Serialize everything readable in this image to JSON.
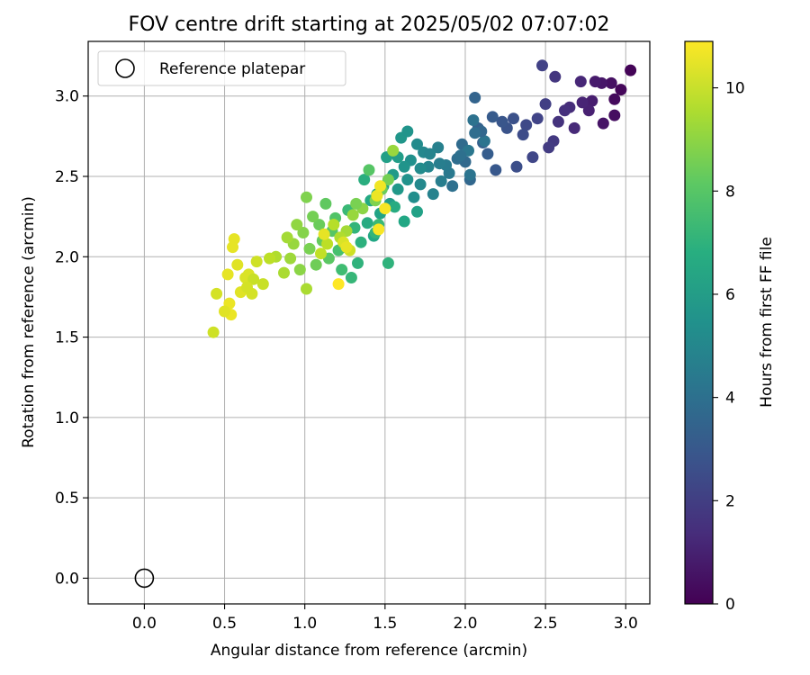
{
  "chart_data": {
    "type": "scatter",
    "title": "FOV centre drift starting at 2025/05/02 07:07:02",
    "xlabel": "Angular distance from reference (arcmin)",
    "ylabel": "Rotation from reference (arcmin)",
    "xlim": [
      -0.35,
      3.15
    ],
    "ylim": [
      -0.16,
      3.34
    ],
    "xticks": [
      0.0,
      0.5,
      1.0,
      1.5,
      2.0,
      2.5,
      3.0
    ],
    "xtick_labels": [
      "0.0",
      "0.5",
      "1.0",
      "1.5",
      "2.0",
      "2.5",
      "3.0"
    ],
    "yticks": [
      0.0,
      0.5,
      1.0,
      1.5,
      2.0,
      2.5,
      3.0
    ],
    "ytick_labels": [
      "0.0",
      "0.5",
      "1.0",
      "1.5",
      "2.0",
      "2.5",
      "3.0"
    ],
    "grid": true,
    "legend": {
      "position": "top-left",
      "entries": [
        "Reference platepar"
      ]
    },
    "reference_point": {
      "x": 0.0,
      "y": 0.0,
      "name": "Reference platepar"
    },
    "colorbar": {
      "label": "Hours from first FF file",
      "colormap": "viridis",
      "range": [
        0,
        10.9
      ],
      "ticks": [
        0,
        2,
        4,
        6,
        8,
        10
      ],
      "tick_labels": [
        "0",
        "2",
        "4",
        "6",
        "8",
        "10"
      ]
    },
    "points": [
      [
        3.03,
        3.16,
        0.1
      ],
      [
        2.97,
        3.04,
        0.2
      ],
      [
        2.93,
        2.98,
        0.3
      ],
      [
        2.93,
        2.88,
        0.4
      ],
      [
        2.91,
        3.08,
        0.5
      ],
      [
        2.86,
        2.83,
        0.6
      ],
      [
        2.85,
        3.08,
        0.7
      ],
      [
        2.81,
        3.09,
        0.8
      ],
      [
        2.79,
        2.97,
        0.9
      ],
      [
        2.77,
        2.91,
        1.0
      ],
      [
        2.73,
        2.96,
        1.1
      ],
      [
        2.72,
        3.09,
        1.2
      ],
      [
        2.68,
        2.8,
        1.3
      ],
      [
        2.65,
        2.93,
        1.4
      ],
      [
        2.62,
        2.91,
        1.5
      ],
      [
        2.58,
        2.84,
        1.6
      ],
      [
        2.56,
        3.12,
        1.7
      ],
      [
        2.55,
        2.72,
        1.8
      ],
      [
        2.52,
        2.68,
        1.9
      ],
      [
        2.5,
        2.95,
        2.0
      ],
      [
        2.48,
        3.19,
        2.1
      ],
      [
        2.45,
        2.86,
        2.2
      ],
      [
        2.42,
        2.62,
        2.3
      ],
      [
        2.38,
        2.82,
        2.4
      ],
      [
        2.36,
        2.76,
        2.5
      ],
      [
        2.32,
        2.56,
        2.6
      ],
      [
        2.3,
        2.86,
        2.7
      ],
      [
        2.26,
        2.8,
        2.8
      ],
      [
        2.23,
        2.84,
        2.9
      ],
      [
        2.19,
        2.54,
        3.0
      ],
      [
        2.17,
        2.87,
        3.1
      ],
      [
        2.14,
        2.64,
        3.2
      ],
      [
        2.11,
        2.71,
        3.3
      ],
      [
        2.08,
        2.8,
        3.4
      ],
      [
        2.06,
        2.99,
        3.5
      ],
      [
        2.03,
        2.48,
        3.6
      ],
      [
        2.0,
        2.59,
        3.7
      ],
      [
        1.98,
        2.7,
        3.8
      ],
      [
        1.95,
        2.61,
        3.9
      ],
      [
        1.92,
        2.44,
        4.0
      ],
      [
        2.05,
        2.85,
        4.1
      ],
      [
        2.12,
        2.72,
        4.2
      ],
      [
        2.02,
        2.66,
        4.3
      ],
      [
        1.9,
        2.52,
        4.4
      ],
      [
        1.88,
        2.57,
        4.5
      ],
      [
        1.85,
        2.47,
        4.6
      ],
      [
        1.83,
        2.68,
        4.7
      ],
      [
        1.8,
        2.39,
        4.8
      ],
      [
        1.77,
        2.56,
        4.9
      ],
      [
        1.74,
        2.65,
        5.0
      ],
      [
        1.72,
        2.45,
        5.1
      ],
      [
        1.7,
        2.7,
        5.2
      ],
      [
        1.68,
        2.37,
        5.3
      ],
      [
        1.66,
        2.6,
        5.4
      ],
      [
        1.64,
        2.48,
        5.5
      ],
      [
        1.62,
        2.56,
        5.6
      ],
      [
        1.6,
        2.74,
        5.7
      ],
      [
        1.58,
        2.42,
        5.8
      ],
      [
        1.55,
        2.51,
        5.9
      ],
      [
        1.53,
        2.33,
        6.0
      ],
      [
        1.51,
        2.62,
        6.1
      ],
      [
        1.49,
        2.44,
        6.2
      ],
      [
        1.47,
        2.27,
        6.3
      ],
      [
        1.45,
        2.39,
        6.4
      ],
      [
        1.43,
        2.13,
        6.5
      ],
      [
        1.41,
        2.35,
        6.6
      ],
      [
        1.39,
        2.21,
        6.7
      ],
      [
        1.37,
        2.48,
        6.8
      ],
      [
        1.35,
        2.09,
        6.9
      ],
      [
        1.33,
        1.96,
        7.0
      ],
      [
        1.31,
        2.18,
        7.1
      ],
      [
        1.29,
        1.87,
        7.2
      ],
      [
        1.27,
        2.29,
        7.3
      ],
      [
        1.25,
        2.06,
        7.4
      ],
      [
        1.23,
        1.92,
        7.5
      ],
      [
        1.52,
        1.96,
        7.0
      ],
      [
        1.64,
        2.78,
        5.6
      ],
      [
        1.72,
        2.55,
        5.2
      ],
      [
        1.78,
        2.64,
        4.9
      ],
      [
        1.84,
        2.58,
        4.6
      ],
      [
        1.97,
        2.63,
        4.0
      ],
      [
        2.1,
        2.78,
        3.6
      ],
      [
        2.06,
        2.77,
        3.9
      ],
      [
        2.03,
        2.51,
        4.2
      ],
      [
        1.58,
        2.62,
        6.0
      ],
      [
        1.44,
        2.15,
        7.1
      ],
      [
        1.62,
        2.22,
        6.5
      ],
      [
        1.7,
        2.28,
        6.2
      ],
      [
        1.56,
        2.31,
        6.7
      ],
      [
        1.46,
        2.2,
        7.3
      ],
      [
        1.21,
        2.04,
        7.7
      ],
      [
        1.19,
        2.24,
        7.9
      ],
      [
        1.17,
        2.16,
        8.0
      ],
      [
        1.15,
        1.99,
        8.1
      ],
      [
        1.13,
        2.33,
        8.2
      ],
      [
        1.11,
        2.1,
        8.3
      ],
      [
        1.09,
        2.2,
        8.4
      ],
      [
        1.07,
        1.95,
        8.5
      ],
      [
        1.05,
        2.25,
        8.6
      ],
      [
        1.03,
        2.05,
        8.7
      ],
      [
        1.01,
        2.37,
        8.8
      ],
      [
        0.99,
        2.15,
        8.9
      ],
      [
        0.97,
        1.92,
        9.0
      ],
      [
        0.95,
        2.2,
        9.1
      ],
      [
        0.93,
        2.08,
        9.2
      ],
      [
        0.91,
        1.99,
        9.3
      ],
      [
        0.89,
        2.12,
        9.4
      ],
      [
        0.87,
        1.9,
        9.5
      ],
      [
        1.01,
        1.8,
        9.5
      ],
      [
        1.4,
        2.54,
        8.0
      ],
      [
        1.48,
        2.42,
        8.4
      ],
      [
        1.52,
        2.48,
        8.6
      ],
      [
        1.44,
        2.35,
        8.8
      ],
      [
        1.36,
        2.3,
        9.0
      ],
      [
        1.3,
        2.26,
        9.2
      ],
      [
        1.26,
        2.16,
        9.4
      ],
      [
        1.22,
        2.12,
        9.6
      ],
      [
        1.18,
        2.2,
        9.7
      ],
      [
        1.14,
        2.08,
        9.8
      ],
      [
        1.1,
        2.02,
        9.9
      ],
      [
        1.28,
        2.04,
        10.1
      ],
      [
        1.24,
        2.09,
        10.3
      ],
      [
        1.26,
        2.06,
        10.5
      ],
      [
        1.45,
        2.38,
        10.6
      ],
      [
        1.47,
        2.44,
        10.7
      ],
      [
        1.5,
        2.3,
        10.8
      ],
      [
        1.21,
        1.83,
        10.9
      ],
      [
        1.12,
        2.14,
        10.5
      ],
      [
        1.46,
        2.17,
        10.8
      ],
      [
        1.55,
        2.66,
        9.2
      ],
      [
        0.82,
        2.0,
        9.6
      ],
      [
        0.78,
        1.99,
        9.8
      ],
      [
        0.74,
        1.83,
        10.0
      ],
      [
        0.7,
        1.97,
        10.1
      ],
      [
        0.67,
        1.77,
        10.2
      ],
      [
        0.65,
        1.89,
        10.3
      ],
      [
        0.63,
        1.87,
        10.3
      ],
      [
        0.6,
        1.78,
        10.4
      ],
      [
        0.58,
        1.95,
        10.4
      ],
      [
        0.56,
        2.11,
        10.5
      ],
      [
        0.55,
        2.06,
        10.5
      ],
      [
        0.54,
        1.64,
        10.6
      ],
      [
        0.53,
        1.71,
        10.6
      ],
      [
        0.52,
        1.89,
        10.5
      ],
      [
        0.5,
        1.66,
        10.4
      ],
      [
        0.45,
        1.77,
        10.2
      ],
      [
        0.43,
        1.53,
        10.1
      ],
      [
        0.68,
        1.86,
        10.0
      ],
      [
        0.64,
        1.81,
        10.2
      ],
      [
        1.32,
        2.33,
        8.7
      ]
    ]
  }
}
